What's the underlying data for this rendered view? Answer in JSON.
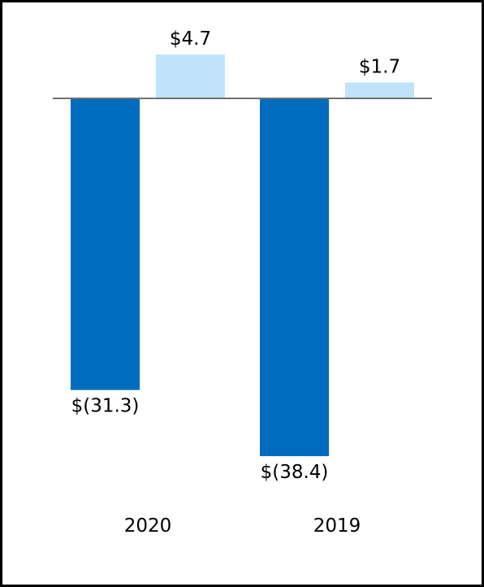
{
  "chart_data": {
    "type": "bar",
    "title": "",
    "xlabel": "",
    "ylabel": "",
    "categories": [
      "2020",
      "2019"
    ],
    "series": [
      {
        "values": [
          -31.3,
          -38.4
        ],
        "labels": [
          "$(31.3)",
          "$(38.4)"
        ],
        "color": "#006cbe"
      },
      {
        "values": [
          4.7,
          1.7
        ],
        "labels": [
          "$4.7",
          "$1.7"
        ],
        "color": "#c0e3fc"
      }
    ],
    "ylim": [
      -38.4,
      4.7
    ],
    "grid": false,
    "legend": "none",
    "baseline_color": "#707070",
    "frame_color": "#000000"
  }
}
